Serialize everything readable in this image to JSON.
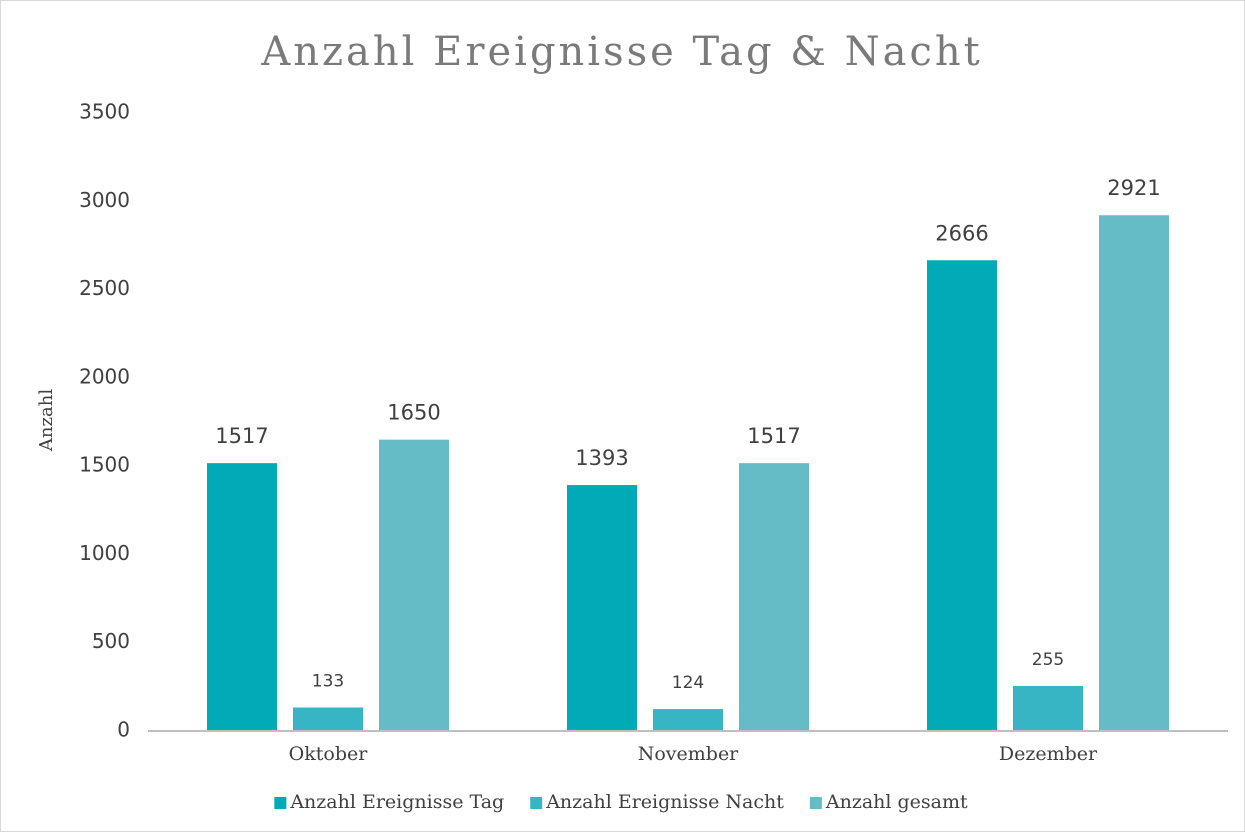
{
  "chart_data": {
    "type": "bar",
    "title": "Anzahl Ereignisse Tag & Nacht",
    "y_label": "Anzahl",
    "categories": [
      "Oktober",
      "November",
      "Dezember"
    ],
    "series": [
      {
        "name": "Anzahl Ereignisse Tag",
        "color": "#00abb7",
        "values": [
          1517,
          1393,
          2666
        ]
      },
      {
        "name": "Anzahl Ereignisse Nacht",
        "color": "#38b5c4",
        "values": [
          133,
          124,
          255
        ]
      },
      {
        "name": "Anzahl gesamt",
        "color": "#66bcc6",
        "values": [
          1650,
          1517,
          2921
        ]
      }
    ],
    "ylim": [
      0,
      3500
    ],
    "yticks": [
      0,
      500,
      1000,
      1500,
      2000,
      2500,
      3000,
      3500
    ],
    "grid": false,
    "legend": "bottom"
  }
}
